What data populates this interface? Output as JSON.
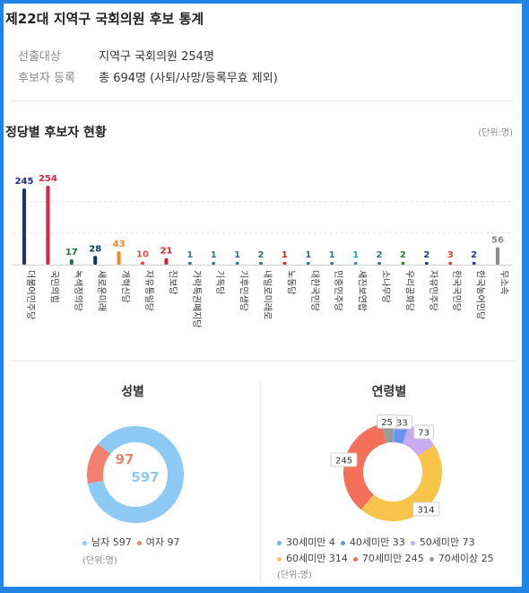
{
  "header": {
    "title": "제22대 지역구 국회의원 후보 통계",
    "rows": [
      {
        "label": "선출대상",
        "value": "지역구 국회의원 254명"
      },
      {
        "label": "후보자 등록",
        "value": "총 694명 (사퇴/사망/등록무효 제외)"
      }
    ]
  },
  "party_section": {
    "title": "정당별 후보자 현황",
    "unit": "(단위:명)"
  },
  "chart_data": [
    {
      "type": "bar",
      "title": "정당별 후보자 현황",
      "categories": [
        "더불어민주당",
        "국민의힘",
        "녹색정의당",
        "새로운미래",
        "개혁신당",
        "자유통일당",
        "진보당",
        "가락특권폐지당",
        "기독당",
        "기후민생당",
        "내일로미래로",
        "노동당",
        "대한국민당",
        "민중민주당",
        "새진보연합",
        "소나무당",
        "우리공화당",
        "자유민주당",
        "한국국민당",
        "한국농어민당",
        "무소속"
      ],
      "values": [
        245,
        254,
        17,
        28,
        43,
        10,
        21,
        1,
        1,
        1,
        2,
        1,
        1,
        1,
        1,
        2,
        2,
        2,
        3,
        2,
        56
      ],
      "colors": [
        "#1e2b8c",
        "#e61e3c",
        "#0f7c3a",
        "#0b3a55",
        "#f08a24",
        "#e34a4a",
        "#d3212e",
        "#3b6f8f",
        "#3b6f8f",
        "#3b6f8f",
        "#3b6f8f",
        "#e2231a",
        "#3b6f8f",
        "#3b6f8f",
        "#22a8a0",
        "#3b6f8f",
        "#1e8c3a",
        "#1e3c8c",
        "#c8462a",
        "#1e3c8c",
        "#8a8a8a"
      ],
      "grid": true
    },
    {
      "type": "pie",
      "title": "성별",
      "labels": [
        "남자",
        "여자"
      ],
      "values": [
        597,
        97
      ],
      "colors": [
        "#8ccaf5",
        "#f28070"
      ],
      "unit": "(단위:명)"
    },
    {
      "type": "pie",
      "title": "연령별",
      "labels": [
        "30세미만",
        "40세미만",
        "50세미만",
        "60세미만",
        "70세미만",
        "70세이상"
      ],
      "values": [
        4,
        33,
        73,
        314,
        245,
        25
      ],
      "colors": [
        "#6fb6ef",
        "#6a93ef",
        "#c8aaf0",
        "#f8c44a",
        "#f5705a",
        "#9a9a9a"
      ],
      "unit": "(단위:명)"
    }
  ]
}
